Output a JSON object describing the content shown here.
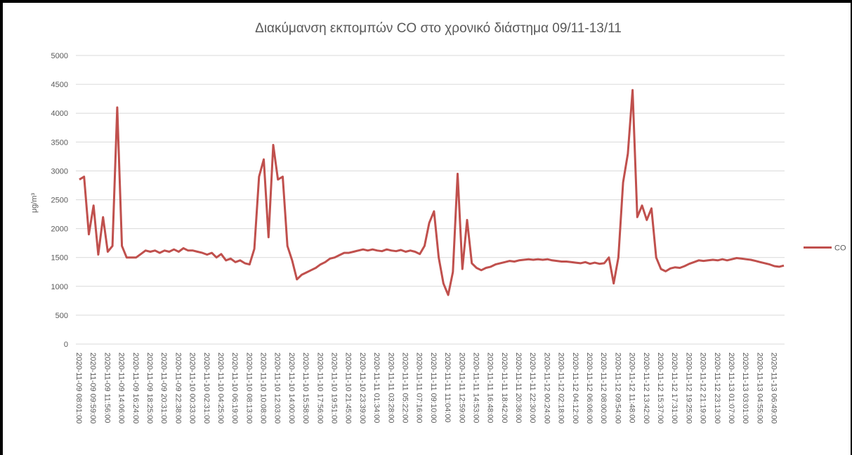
{
  "chart_data": {
    "type": "line",
    "title": "Διακύμανση εκπομπών  CO  στο χρονικό διάστημα 09/11-13/11",
    "y_label": "μg/m³",
    "legend": "right",
    "grid": true,
    "ylim": [
      0,
      5000
    ],
    "yticks": [
      0,
      500,
      1000,
      1500,
      2000,
      2500,
      3000,
      3500,
      4000,
      4500,
      5000
    ],
    "categories": [
      "2020-11-09 08:01:00",
      null,
      null,
      "2020-11-09 09:59:00",
      null,
      null,
      "2020-11-09 11:56:00",
      null,
      null,
      "2020-11-09 14:06:00",
      null,
      null,
      "2020-11-09 16:24:00",
      null,
      null,
      "2020-11-09 18:25:00",
      null,
      null,
      "2020-11-09 20:31:00",
      null,
      null,
      "2020-11-09 22:38:00",
      null,
      null,
      "2020-11-10 00:33:00",
      null,
      null,
      "2020-11-10 02:31:00",
      null,
      null,
      "2020-11-10 04:25:00",
      null,
      null,
      "2020-11-10 06:19:00",
      null,
      null,
      "2020-11-10 08:13:00",
      null,
      null,
      "2020-11-10 10:08:00",
      null,
      null,
      "2020-11-10 12:03:00",
      null,
      null,
      "2020-11-10 14:00:00",
      null,
      null,
      "2020-11-10 15:58:00",
      null,
      null,
      "2020-11-10 17:56:00",
      null,
      null,
      "2020-11-10 19:51:00",
      null,
      null,
      "2020-11-10 21:45:00",
      null,
      null,
      "2020-11-10 23:39:00",
      null,
      null,
      "2020-11-11 01:34:00",
      null,
      null,
      "2020-11-11 03:28:00",
      null,
      null,
      "2020-11-11 05:22:00",
      null,
      null,
      "2020-11-11 07:16:00",
      null,
      null,
      "2020-11-11 09:10:00",
      null,
      null,
      "2020-11-11 11:04:00",
      null,
      null,
      "2020-11-11 12:59:00",
      null,
      null,
      "2020-11-11 14:53:00",
      null,
      null,
      "2020-11-11 16:48:00",
      null,
      null,
      "2020-11-11 18:42:00",
      null,
      null,
      "2020-11-11 20:36:00",
      null,
      null,
      "2020-11-11 22:30:00",
      null,
      null,
      "2020-11-12 00:24:00",
      null,
      null,
      "2020-11-12 02:18:00",
      null,
      null,
      "2020-11-12 04:12:00",
      null,
      null,
      "2020-11-12 06:06:00",
      null,
      null,
      "2020-11-12 08:00:00",
      null,
      null,
      "2020-11-12 09:54:00",
      null,
      null,
      "2020-11-12 11:48:00",
      null,
      null,
      "2020-11-12 13:42:00",
      null,
      null,
      "2020-11-12 15:37:00",
      null,
      null,
      "2020-11-12 17:31:00",
      null,
      null,
      "2020-11-12 19:25:00",
      null,
      null,
      "2020-11-12 21:19:00",
      null,
      null,
      "2020-11-12 23:13:00",
      null,
      null,
      "2020-11-13 01:07:00",
      null,
      null,
      "2020-11-13 03:01:00",
      null,
      null,
      "2020-11-13 04:55:00",
      null,
      null,
      "2020-11-13 06:49:00",
      null,
      null
    ],
    "series": [
      {
        "name": "CO",
        "color": "#c0504d",
        "values": [
          2850,
          2900,
          1900,
          2400,
          1550,
          2200,
          1600,
          1700,
          4100,
          1700,
          1500,
          1500,
          1500,
          1560,
          1620,
          1600,
          1620,
          1580,
          1620,
          1600,
          1640,
          1600,
          1660,
          1620,
          1620,
          1600,
          1580,
          1550,
          1580,
          1500,
          1560,
          1450,
          1480,
          1420,
          1450,
          1400,
          1380,
          1650,
          2900,
          3200,
          1850,
          3450,
          2850,
          2900,
          1700,
          1450,
          1120,
          1200,
          1240,
          1280,
          1320,
          1380,
          1420,
          1480,
          1500,
          1540,
          1580,
          1580,
          1600,
          1620,
          1640,
          1620,
          1640,
          1620,
          1610,
          1640,
          1620,
          1610,
          1630,
          1600,
          1620,
          1600,
          1560,
          1700,
          2100,
          2300,
          1500,
          1050,
          850,
          1250,
          2950,
          1300,
          2150,
          1400,
          1320,
          1280,
          1320,
          1340,
          1380,
          1400,
          1420,
          1440,
          1430,
          1450,
          1460,
          1470,
          1460,
          1470,
          1460,
          1470,
          1450,
          1440,
          1430,
          1430,
          1420,
          1410,
          1400,
          1420,
          1390,
          1410,
          1390,
          1400,
          1500,
          1050,
          1500,
          2800,
          3300,
          4400,
          2200,
          2400,
          2150,
          2350,
          1500,
          1300,
          1260,
          1310,
          1330,
          1320,
          1350,
          1390,
          1420,
          1450,
          1440,
          1450,
          1460,
          1450,
          1470,
          1450,
          1470,
          1490,
          1480,
          1470,
          1460,
          1440,
          1420,
          1400,
          1380,
          1350,
          1340,
          1360
        ]
      }
    ]
  }
}
